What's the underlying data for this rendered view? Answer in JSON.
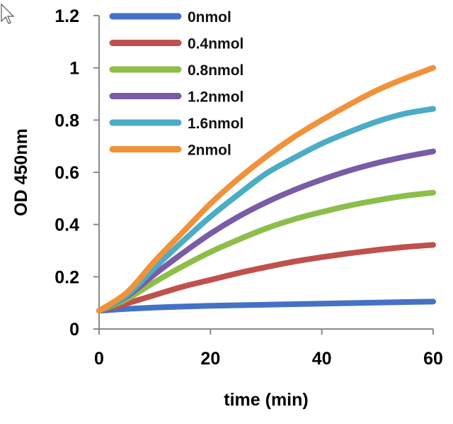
{
  "chart_data": {
    "type": "line",
    "title": "",
    "xlabel": "time (min)",
    "ylabel": "OD 450nm",
    "xlim": [
      0,
      60
    ],
    "ylim": [
      0,
      1.2
    ],
    "xticks": [
      "0",
      "20",
      "40",
      "60"
    ],
    "yticks": [
      "0",
      "0.2",
      "0.4",
      "0.6",
      "0.8",
      "1",
      "1.2"
    ],
    "grid": false,
    "legend_position": "top-left",
    "series": [
      {
        "name": "0nmol",
        "color": "#4472C4",
        "x": [
          0,
          5,
          10,
          15,
          20,
          25,
          30,
          35,
          40,
          45,
          50,
          55,
          60
        ],
        "y": [
          0.07,
          0.077,
          0.082,
          0.086,
          0.089,
          0.091,
          0.093,
          0.095,
          0.097,
          0.099,
          0.101,
          0.103,
          0.105
        ]
      },
      {
        "name": "0.4nmol",
        "color": "#C0504D",
        "x": [
          0,
          5,
          10,
          15,
          20,
          25,
          30,
          35,
          40,
          45,
          50,
          55,
          60
        ],
        "y": [
          0.07,
          0.098,
          0.13,
          0.162,
          0.188,
          0.214,
          0.237,
          0.258,
          0.275,
          0.29,
          0.303,
          0.314,
          0.322
        ]
      },
      {
        "name": "0.8nmol",
        "color": "#8DBE4A",
        "x": [
          0,
          5,
          10,
          15,
          20,
          25,
          30,
          35,
          40,
          45,
          50,
          55,
          60
        ],
        "y": [
          0.07,
          0.115,
          0.18,
          0.24,
          0.295,
          0.342,
          0.385,
          0.42,
          0.448,
          0.473,
          0.493,
          0.51,
          0.522
        ]
      },
      {
        "name": "1.2nmol",
        "color": "#7A5BA6",
        "x": [
          0,
          5,
          10,
          15,
          20,
          25,
          30,
          35,
          40,
          45,
          50,
          55,
          60
        ],
        "y": [
          0.07,
          0.125,
          0.21,
          0.29,
          0.365,
          0.43,
          0.485,
          0.532,
          0.572,
          0.607,
          0.636,
          0.66,
          0.68
        ]
      },
      {
        "name": "1.6nmol",
        "color": "#4BACC6",
        "x": [
          0,
          5,
          10,
          15,
          20,
          25,
          30,
          35,
          40,
          45,
          50,
          55,
          60
        ],
        "y": [
          0.07,
          0.13,
          0.235,
          0.335,
          0.43,
          0.515,
          0.595,
          0.655,
          0.71,
          0.755,
          0.795,
          0.825,
          0.843
        ]
      },
      {
        "name": "2nmol",
        "color": "#F0923A",
        "x": [
          0,
          5,
          10,
          15,
          20,
          25,
          30,
          35,
          40,
          45,
          50,
          55,
          60
        ],
        "y": [
          0.07,
          0.14,
          0.26,
          0.37,
          0.48,
          0.575,
          0.66,
          0.735,
          0.8,
          0.86,
          0.915,
          0.96,
          1.0
        ]
      }
    ]
  }
}
